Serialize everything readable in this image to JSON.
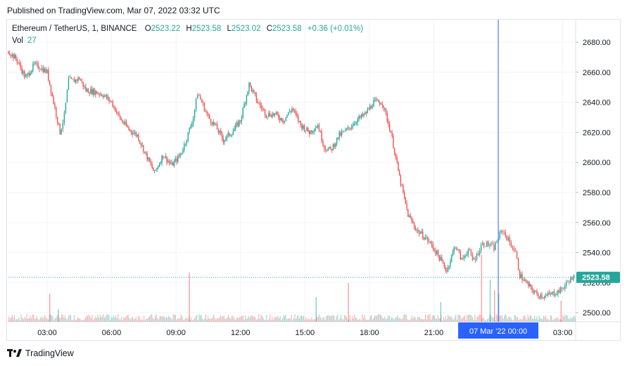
{
  "header": {
    "published": "Published on TradingView.com, Mar 07, 2022 03:32 UTC"
  },
  "legend": {
    "symbol": "Ethereum / TetherUS, 1, BINANCE",
    "open_label": "O",
    "open": "2523.22",
    "high_label": "H",
    "high": "2523.58",
    "low_label": "L",
    "low": "2523.02",
    "close_label": "C",
    "close": "2523.58",
    "change": "+0.36 (+0.01%)",
    "vol_label": "Vol",
    "vol": "27"
  },
  "footer": {
    "brand": "TradingView"
  },
  "colors": {
    "up": "#26a69a",
    "down": "#ef5350",
    "crosshair": "#2962ff",
    "price_tag": "#26a69a"
  },
  "chart_data": {
    "type": "line",
    "title": "Ethereum / TetherUS, 1, BINANCE",
    "y_axis_ticks": [
      "2680.00",
      "2660.00",
      "2640.00",
      "2620.00",
      "2600.00",
      "2580.00",
      "2560.00",
      "2540.00",
      "2520.00",
      "2500.00"
    ],
    "ylim": [
      2494,
      2694
    ],
    "x_axis_ticks": [
      "03:00",
      "06:00",
      "09:00",
      "12:00",
      "15:00",
      "18:00",
      "21:00",
      "00:00",
      "03:00"
    ],
    "x_range_hours": [
      1.2,
      27.6
    ],
    "crosshair_label": "07 Mar '22   00:00",
    "crosshair_hour": 24.0,
    "last_price": "2523.58",
    "last_price_value": 2523.58,
    "series": [
      {
        "time_hours": [
          1.2,
          1.6,
          2.0,
          2.4,
          2.7,
          3.0,
          3.3,
          3.6,
          3.8,
          4.0,
          4.2,
          4.5,
          4.8,
          5.2,
          5.6,
          6.0,
          6.4,
          6.8,
          7.2,
          7.6,
          8.0,
          8.4,
          8.8,
          9.2,
          9.5,
          9.8,
          10.0,
          10.2,
          10.5,
          10.8,
          11.2,
          11.6,
          12.0,
          12.4,
          12.8,
          13.2,
          13.6,
          14.0,
          14.4,
          14.8,
          15.2,
          15.6,
          15.9,
          16.2,
          16.6,
          17.0,
          17.4,
          17.8,
          18.2,
          18.6,
          19.0,
          19.4,
          19.8,
          20.2,
          20.6,
          20.9,
          21.2,
          21.6,
          22.0,
          22.3,
          22.6,
          22.8,
          23.0,
          23.2,
          23.4,
          23.6,
          23.8,
          24.0,
          24.2,
          24.4,
          24.6,
          24.8,
          25.0,
          25.4,
          25.8,
          26.2,
          26.6,
          26.9,
          27.1,
          27.3,
          27.5,
          27.6
        ],
        "price": [
          2674,
          2668,
          2656,
          2665,
          2663,
          2660,
          2640,
          2620,
          2631,
          2655,
          2654,
          2656,
          2648,
          2647,
          2645,
          2640,
          2629,
          2622,
          2618,
          2605,
          2593,
          2605,
          2598,
          2605,
          2616,
          2630,
          2646,
          2640,
          2630,
          2625,
          2615,
          2620,
          2628,
          2652,
          2640,
          2632,
          2632,
          2628,
          2636,
          2625,
          2620,
          2625,
          2610,
          2608,
          2618,
          2622,
          2628,
          2632,
          2640,
          2640,
          2620,
          2590,
          2565,
          2555,
          2550,
          2545,
          2538,
          2528,
          2545,
          2535,
          2542,
          2535,
          2538,
          2545,
          2546,
          2545,
          2543,
          2550,
          2555,
          2550,
          2545,
          2540,
          2525,
          2518,
          2512,
          2511,
          2513,
          2515,
          2518,
          2522,
          2523,
          2523.58
        ]
      }
    ],
    "volume_spikes_hours": [
      3.1,
      3.5,
      9.6,
      15.5,
      17.0,
      21.3,
      23.2,
      23.6,
      23.8,
      24.0,
      26.9
    ]
  }
}
